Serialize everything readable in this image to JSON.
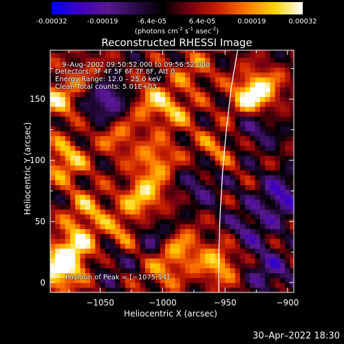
{
  "colorbar": {
    "tick_labels": [
      "-0.00032",
      "-0.00019",
      "-6.4e-05",
      "6.4e-05",
      "0.00019",
      "0.00032"
    ],
    "tick_values": [
      -0.00032,
      -0.00019,
      -6.4e-05,
      6.4e-05,
      0.00019,
      0.00032
    ],
    "range": [
      -0.00032,
      0.00032
    ],
    "units_text": "(photons cm",
    "units_exp1": "-2",
    "units_mid": " s",
    "units_exp2": "-1",
    "units_end": " asec",
    "units_exp3": "-2",
    "units_close": ")",
    "colors": [
      "#0000ff",
      "#3f00bf",
      "#5a1890",
      "#2b0c4a",
      "#000000",
      "#7a0010",
      "#cc2200",
      "#ff7a00",
      "#ffd400",
      "#ffffff"
    ]
  },
  "chart_data": {
    "type": "heatmap",
    "title": "Reconstructed RHESSI Image",
    "xlabel": "Heliocentric X (arcsec)",
    "ylabel": "Heliocentric Y (arcsec)",
    "xlim": [
      -1090,
      -895
    ],
    "ylim": [
      -8,
      190
    ],
    "x_ticks": [
      -1050,
      -1000,
      -950,
      -900
    ],
    "x_tick_labels": [
      "−1050",
      "−1000",
      "−950",
      "−900"
    ],
    "y_ticks": [
      0,
      50,
      100,
      150
    ],
    "y_tick_labels": [
      "0",
      "50",
      "100",
      "150"
    ],
    "annotations": [
      "9–Aug–2002 09:50:52.000 to 09:56:52.000",
      "Detectors: 3F 4F 5F 6F 7F 8F, Att 0",
      "Energy Range: 12.0 – 25.0 keV",
      "Clean     Total counts: 5.01E+03"
    ],
    "peak_label": "Position of Peak = [−1075,14]",
    "peak_position": [
      -1075,
      14
    ],
    "limb_curve": [
      {
        "x": -940,
        "y": 190
      },
      {
        "x": -945,
        "y": 160
      },
      {
        "x": -949,
        "y": 125
      },
      {
        "x": -952,
        "y": 90
      },
      {
        "x": -954,
        "y": 55
      },
      {
        "x": -955,
        "y": 25
      },
      {
        "x": -955,
        "y": -8
      }
    ],
    "hotspots": [
      {
        "x": -1082,
        "y": 10,
        "v": 0.00032
      },
      {
        "x": -1070,
        "y": 30,
        "v": 0.00026
      },
      {
        "x": -1078,
        "y": 100,
        "v": 0.00024
      },
      {
        "x": -1084,
        "y": 150,
        "v": 0.00022
      },
      {
        "x": -1060,
        "y": 60,
        "v": 0.00018
      },
      {
        "x": -1030,
        "y": 40,
        "v": 0.0002
      },
      {
        "x": -1015,
        "y": 70,
        "v": 0.00026
      },
      {
        "x": -1005,
        "y": 100,
        "v": 0.0002
      },
      {
        "x": -1035,
        "y": 120,
        "v": 0.00016
      },
      {
        "x": -1010,
        "y": 150,
        "v": 0.00018
      },
      {
        "x": -990,
        "y": 140,
        "v": 0.00016
      },
      {
        "x": -975,
        "y": 175,
        "v": 0.00014
      },
      {
        "x": -985,
        "y": 30,
        "v": 0.00018
      },
      {
        "x": -955,
        "y": 15,
        "v": 0.00022
      },
      {
        "x": -958,
        "y": 110,
        "v": 0.00014
      },
      {
        "x": -930,
        "y": 150,
        "v": 0.00026
      },
      {
        "x": -920,
        "y": 160,
        "v": 0.00018
      },
      {
        "x": -1060,
        "y": 170,
        "v": 0.00012
      },
      {
        "x": -1000,
        "y": 10,
        "v": 0.00016
      }
    ],
    "coldspots": [
      {
        "x": -1045,
        "y": 150,
        "v": -0.00024
      },
      {
        "x": -1010,
        "y": 40,
        "v": -0.00018
      },
      {
        "x": -925,
        "y": 130,
        "v": -0.00016
      },
      {
        "x": -905,
        "y": 70,
        "v": -0.00022
      },
      {
        "x": -930,
        "y": 45,
        "v": -0.00014
      },
      {
        "x": -970,
        "y": 80,
        "v": -0.00012
      },
      {
        "x": -1040,
        "y": 20,
        "v": -0.0001
      },
      {
        "x": -915,
        "y": 10,
        "v": -0.00016
      }
    ]
  },
  "footer": {
    "timestamp": "30–Apr–2022 18:30"
  }
}
